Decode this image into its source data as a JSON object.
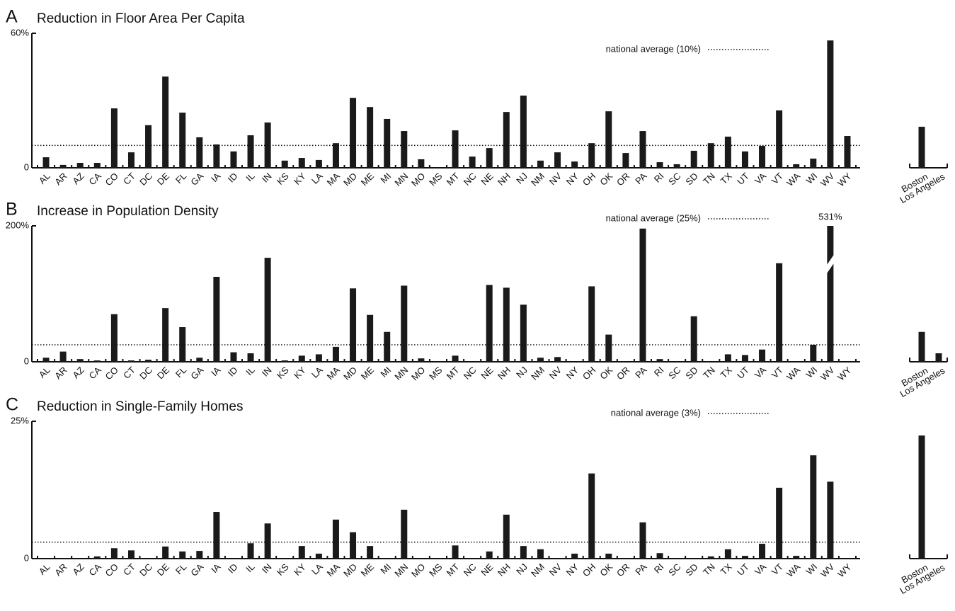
{
  "chart_data": [
    {
      "type": "bar",
      "panel": "A",
      "title": "Reduction in Floor Area Per Capita",
      "categories": [
        "AL",
        "AR",
        "AZ",
        "CA",
        "CO",
        "CT",
        "DC",
        "DE",
        "FL",
        "GA",
        "IA",
        "ID",
        "IL",
        "IN",
        "KS",
        "KY",
        "LA",
        "MA",
        "MD",
        "ME",
        "MI",
        "MN",
        "MO",
        "MS",
        "MT",
        "NC",
        "NE",
        "NH",
        "NJ",
        "NM",
        "NV",
        "NY",
        "OH",
        "OK",
        "OR",
        "PA",
        "RI",
        "SC",
        "SD",
        "TN",
        "TX",
        "UT",
        "VA",
        "VT",
        "WA",
        "WI",
        "WV",
        "WY"
      ],
      "values": [
        4.7,
        1.3,
        2.2,
        2.2,
        26.5,
        6.9,
        19,
        40.7,
        24.6,
        13.6,
        10.4,
        7.3,
        14.5,
        20.2,
        3.2,
        4.4,
        3.5,
        11,
        31.2,
        27.1,
        21.8,
        16.4,
        3.8,
        0,
        16.7,
        5,
        8.8,
        24.9,
        32.2,
        3.2,
        6.9,
        2.8,
        11,
        25.2,
        6.6,
        16.4,
        2.5,
        1.6,
        7.6,
        11,
        13.9,
        7.3,
        9.8,
        25.6,
        1.6,
        4.1,
        56.8,
        14.2
      ],
      "color": "#1a1a1a",
      "ylim": [
        0,
        60
      ],
      "yticks": [
        0,
        {
          "value": 60,
          "label": "60%"
        }
      ],
      "reference_line": {
        "value": 10,
        "label": "national average (10%)"
      },
      "side": {
        "categories": [
          "Boston",
          "Los Angeles"
        ],
        "values": [
          18.3,
          0
        ]
      }
    },
    {
      "type": "bar",
      "panel": "B",
      "title": "Increase in Population Density",
      "categories": [
        "AL",
        "AR",
        "AZ",
        "CA",
        "CO",
        "CT",
        "DC",
        "DE",
        "FL",
        "GA",
        "IA",
        "ID",
        "IL",
        "IN",
        "KS",
        "KY",
        "LA",
        "MA",
        "MD",
        "ME",
        "MI",
        "MN",
        "MO",
        "MS",
        "MT",
        "NC",
        "NE",
        "NH",
        "NJ",
        "NM",
        "NV",
        "NY",
        "OH",
        "OK",
        "OR",
        "PA",
        "RI",
        "SC",
        "SD",
        "TN",
        "TX",
        "UT",
        "VA",
        "VT",
        "WA",
        "WI",
        "WV",
        "WY"
      ],
      "values": [
        6,
        15,
        4,
        2,
        70,
        2,
        3,
        79,
        51,
        6,
        125,
        14,
        12.5,
        153,
        2,
        9,
        11,
        22,
        108,
        69,
        44,
        112,
        5,
        0,
        9,
        0,
        113,
        109,
        84,
        6,
        7,
        0,
        111,
        40,
        0,
        196,
        4,
        0,
        67,
        0,
        11,
        10,
        18,
        145,
        0,
        25,
        531,
        0
      ],
      "value_labels": [
        null,
        null,
        null,
        null,
        null,
        null,
        null,
        null,
        null,
        null,
        null,
        null,
        null,
        null,
        null,
        null,
        null,
        null,
        null,
        null,
        null,
        null,
        null,
        null,
        null,
        null,
        null,
        null,
        null,
        null,
        null,
        null,
        null,
        null,
        null,
        null,
        null,
        null,
        null,
        null,
        null,
        null,
        null,
        null,
        null,
        null,
        "531%",
        null
      ],
      "color": "#1a1a1a",
      "ylim": [
        0,
        200
      ],
      "yticks": [
        0,
        {
          "value": 200,
          "label": "200%"
        }
      ],
      "reference_line": {
        "value": 25,
        "label": "national average (25%)"
      },
      "side": {
        "categories": [
          "Boston",
          "Los Angeles"
        ],
        "values": [
          44,
          12.5
        ]
      }
    },
    {
      "type": "bar",
      "panel": "C",
      "title": "Reduction in Single-Family Homes",
      "categories": [
        "AL",
        "AR",
        "AZ",
        "CA",
        "CO",
        "CT",
        "DC",
        "DE",
        "FL",
        "GA",
        "IA",
        "ID",
        "IL",
        "IN",
        "KS",
        "KY",
        "LA",
        "MA",
        "MD",
        "ME",
        "MI",
        "MN",
        "MO",
        "MS",
        "MT",
        "NC",
        "NE",
        "NH",
        "NJ",
        "NM",
        "NV",
        "NY",
        "OH",
        "OK",
        "OR",
        "PA",
        "RI",
        "SC",
        "SD",
        "TN",
        "TX",
        "UT",
        "VA",
        "VT",
        "WA",
        "WI",
        "WV",
        "WY"
      ],
      "values": [
        0,
        0,
        0,
        0.4,
        1.9,
        1.5,
        0,
        2.2,
        1.3,
        1.4,
        8.5,
        0,
        2.8,
        6.4,
        0,
        2.3,
        0.9,
        7.1,
        4.8,
        2.3,
        0,
        8.9,
        0,
        0,
        2.4,
        0,
        1.3,
        8,
        2.3,
        1.7,
        0,
        0.9,
        15.5,
        0.9,
        0,
        6.6,
        1,
        0,
        0,
        0.4,
        1.7,
        0.5,
        2.7,
        12.9,
        0.5,
        18.8,
        14,
        0
      ],
      "color": "#1a1a1a",
      "ylim": [
        0,
        25
      ],
      "yticks": [
        0,
        {
          "value": 25,
          "label": "25%"
        }
      ],
      "reference_line": {
        "value": 3,
        "label": "national average (3%)"
      },
      "side": {
        "categories": [
          "Boston",
          "Los Angeles"
        ],
        "values": [
          22.4,
          0
        ]
      }
    }
  ]
}
